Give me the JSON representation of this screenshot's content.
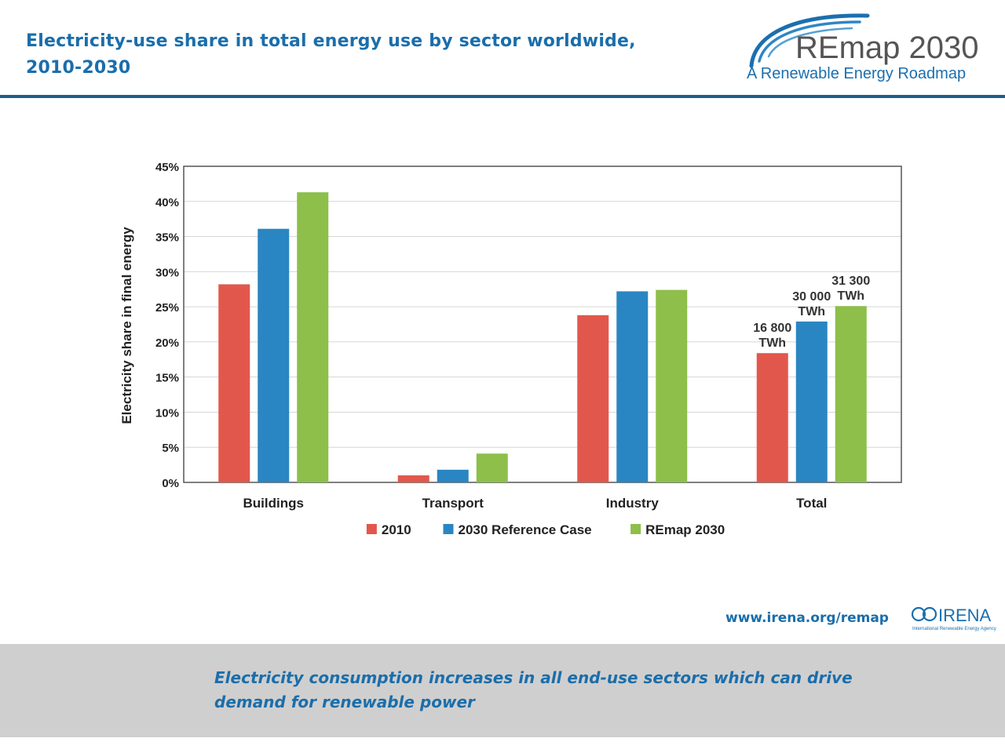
{
  "slide": {
    "title": "Electricity-use share in total energy use by sector worldwide, 2010-2030",
    "url": "www.irena.org/remap",
    "caption": "Electricity consumption increases in all end-use sectors which can drive demand for renewable power"
  },
  "logos": {
    "remap_title": "REmap 2030",
    "remap_subtitle": "A Renewable Energy Roadmap",
    "irena_name": "IRENA",
    "irena_subtitle": "International Renewable Energy Agency"
  },
  "colors": {
    "title": "#1a6eab",
    "rule": "#1b5e8c",
    "footer_band": "#d0cfcf"
  },
  "chart_data": {
    "type": "bar",
    "title": "",
    "xlabel": "",
    "ylabel": "Electricity share in final energy",
    "ylim": [
      0,
      45
    ],
    "yticks": [
      0,
      5,
      10,
      15,
      20,
      25,
      30,
      35,
      40,
      45
    ],
    "ytick_labels": [
      "0%",
      "5%",
      "10%",
      "15%",
      "20%",
      "25%",
      "30%",
      "35%",
      "40%",
      "45%"
    ],
    "grid": true,
    "legend_position": "bottom",
    "categories": [
      "Buildings",
      "Transport",
      "Industry",
      "Total"
    ],
    "series": [
      {
        "name": "2010",
        "color": "#e2574c",
        "values": [
          28.2,
          1.0,
          23.8,
          18.4
        ]
      },
      {
        "name": "2030 Reference Case",
        "color": "#2a86c2",
        "values": [
          36.1,
          1.8,
          27.2,
          22.9
        ]
      },
      {
        "name": "REmap 2030",
        "color": "#8dbf4a",
        "values": [
          41.3,
          4.1,
          27.4,
          25.1
        ]
      }
    ],
    "annotations": [
      {
        "category": "Total",
        "series": "2010",
        "lines": [
          "16 800",
          "TWh"
        ]
      },
      {
        "category": "Total",
        "series": "2030 Reference Case",
        "lines": [
          "30 000",
          "TWh"
        ]
      },
      {
        "category": "Total",
        "series": "REmap 2030",
        "lines": [
          "31 300",
          "TWh"
        ]
      }
    ]
  }
}
